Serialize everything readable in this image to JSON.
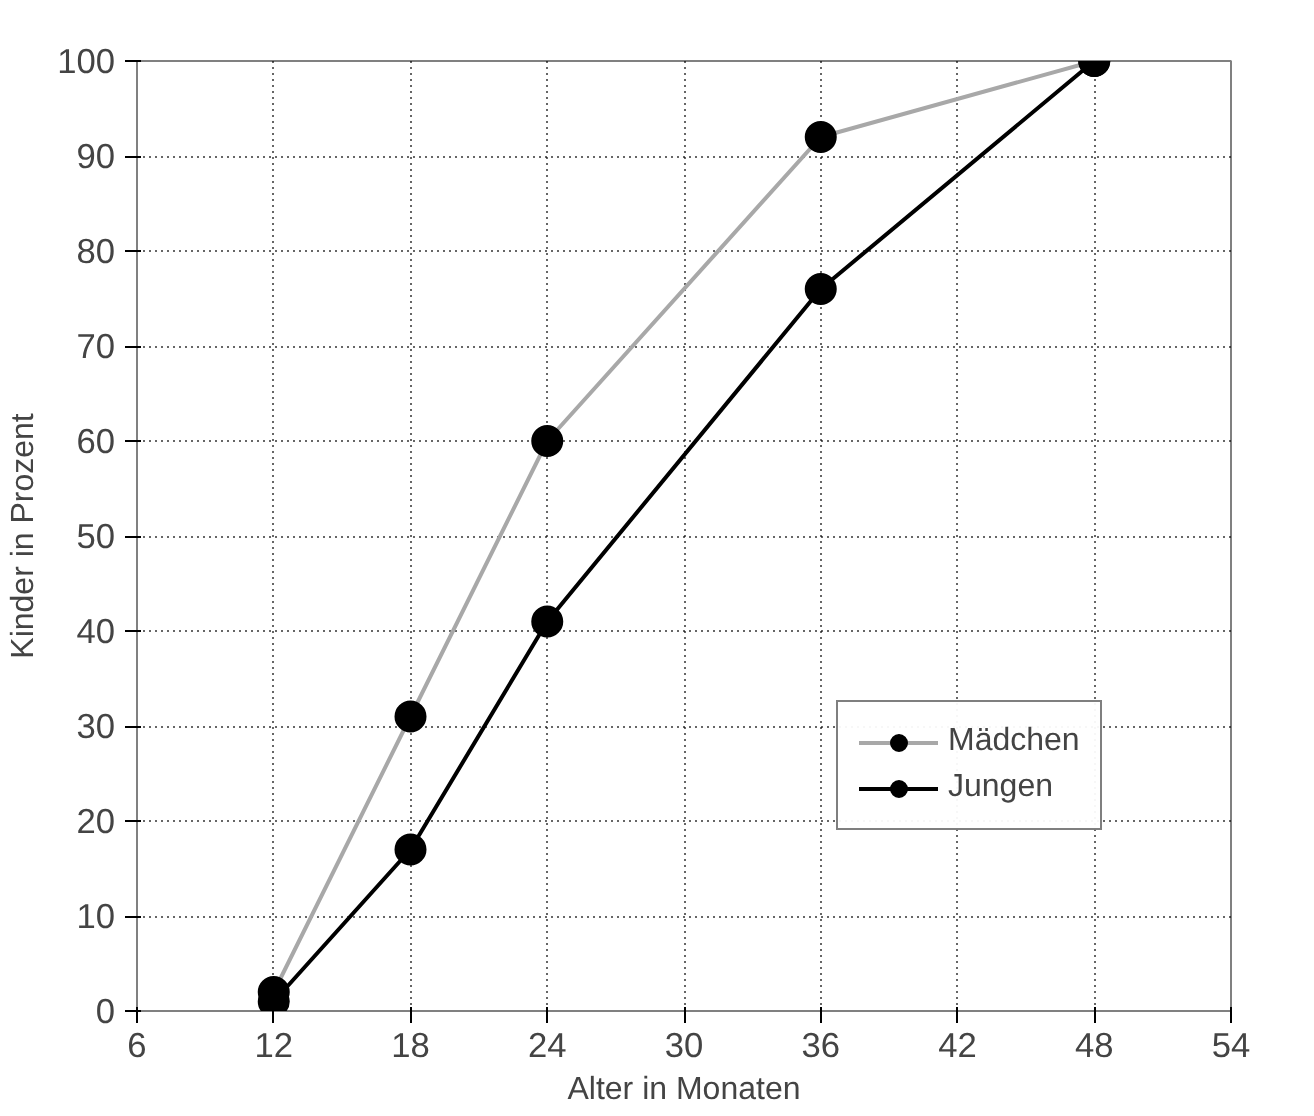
{
  "chart_data": {
    "type": "line",
    "xlabel": "Alter in Monaten",
    "ylabel": "Kinder in Prozent",
    "x": [
      12,
      18,
      24,
      36,
      48
    ],
    "series": [
      {
        "name": "Mädchen",
        "color": "#a8a8a8",
        "values": [
          2,
          31,
          60,
          92,
          100
        ]
      },
      {
        "name": "Jungen",
        "color": "#000000",
        "values": [
          1,
          17,
          41,
          76,
          100
        ]
      }
    ],
    "xlim": [
      6,
      54
    ],
    "xticks": [
      6,
      12,
      18,
      24,
      30,
      36,
      42,
      48,
      54
    ],
    "ylim": [
      0,
      100
    ],
    "yticks": [
      0,
      10,
      20,
      30,
      40,
      50,
      60,
      70,
      80,
      90,
      100
    ],
    "grid": true,
    "legend": "right",
    "marker": "circle",
    "line_style": "solid"
  }
}
